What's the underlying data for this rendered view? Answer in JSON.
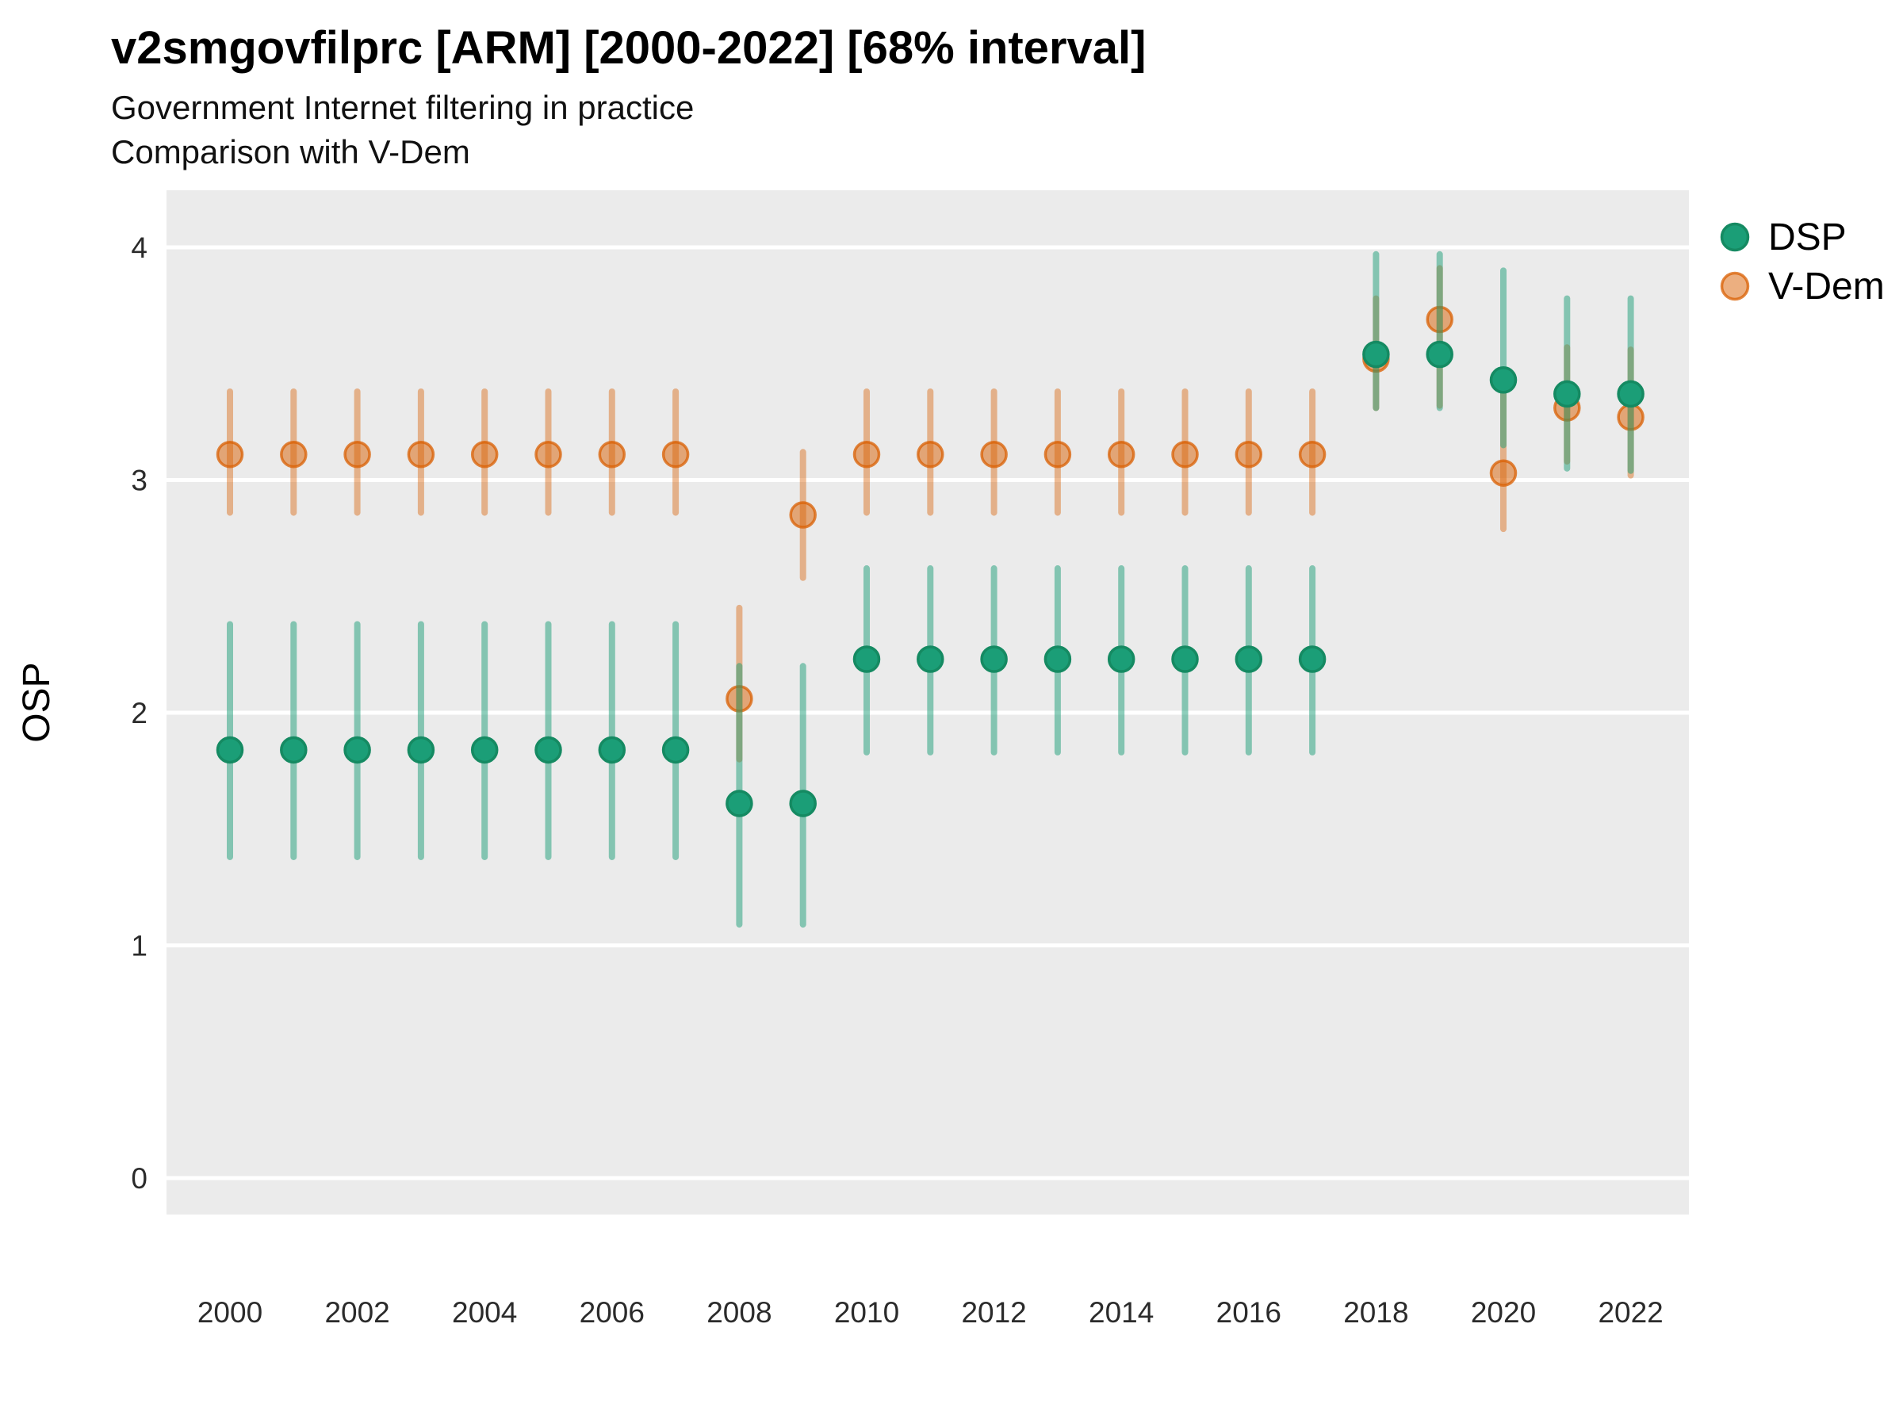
{
  "header": {
    "title": "v2smgovfilprc [ARM] [2000-2022] [68% interval]",
    "subtitle1": "Government Internet filtering in practice",
    "subtitle2": "Comparison with V-Dem"
  },
  "axes": {
    "y_label": "OSP",
    "y_ticks": [
      0,
      1,
      2,
      3,
      4
    ],
    "x_ticks": [
      2000,
      2002,
      2004,
      2006,
      2008,
      2010,
      2012,
      2014,
      2016,
      2018,
      2020,
      2022
    ]
  },
  "legend": {
    "items": [
      {
        "label": "DSP"
      },
      {
        "label": "V-Dem"
      }
    ]
  },
  "colors": {
    "panel_background": "#ebebeb",
    "gridline": "#ffffff",
    "dsp_green": "#1b9e77",
    "dsp_green_stroke": "#158a62",
    "vdem_orange": "#d95f02"
  },
  "chart_data": {
    "type": "pointrange",
    "title": "v2smgovfilprc [ARM] [2000-2022] [68% interval]",
    "subtitle": [
      "Government Internet filtering in practice",
      "Comparison with V-Dem"
    ],
    "interval": "68%",
    "xlabel": "",
    "ylabel": "OSP",
    "ylim": [
      0,
      4
    ],
    "grid": "major horizontal white lines on gray panel",
    "legend_position": "right-top",
    "x": [
      2000,
      2001,
      2002,
      2003,
      2004,
      2005,
      2006,
      2007,
      2008,
      2009,
      2010,
      2011,
      2012,
      2013,
      2014,
      2015,
      2016,
      2017,
      2018,
      2019,
      2020,
      2021,
      2022
    ],
    "series": [
      {
        "name": "DSP",
        "color": "#1b9e77",
        "est": [
          1.84,
          1.84,
          1.84,
          1.84,
          1.84,
          1.84,
          1.84,
          1.84,
          1.61,
          1.61,
          2.23,
          2.23,
          2.23,
          2.23,
          2.23,
          2.23,
          2.23,
          2.23,
          3.54,
          3.54,
          3.43,
          3.37,
          3.37
        ],
        "lo": [
          1.38,
          1.38,
          1.38,
          1.38,
          1.38,
          1.38,
          1.38,
          1.38,
          1.09,
          1.09,
          1.83,
          1.83,
          1.83,
          1.83,
          1.83,
          1.83,
          1.83,
          1.83,
          3.31,
          3.31,
          3.15,
          3.05,
          3.04
        ],
        "hi": [
          2.38,
          2.38,
          2.38,
          2.38,
          2.38,
          2.38,
          2.38,
          2.38,
          2.2,
          2.2,
          2.62,
          2.62,
          2.62,
          2.62,
          2.62,
          2.62,
          2.62,
          2.62,
          3.97,
          3.97,
          3.9,
          3.78,
          3.78
        ]
      },
      {
        "name": "V-Dem",
        "color": "#d95f02",
        "est": [
          3.11,
          3.11,
          3.11,
          3.11,
          3.11,
          3.11,
          3.11,
          3.11,
          2.06,
          2.85,
          3.11,
          3.11,
          3.11,
          3.11,
          3.11,
          3.11,
          3.11,
          3.11,
          3.52,
          3.69,
          3.03,
          3.31,
          3.27
        ],
        "lo": [
          2.86,
          2.86,
          2.86,
          2.86,
          2.86,
          2.86,
          2.86,
          2.86,
          1.8,
          2.58,
          2.86,
          2.86,
          2.86,
          2.86,
          2.86,
          2.86,
          2.86,
          2.86,
          3.31,
          3.32,
          2.79,
          3.08,
          3.02
        ],
        "hi": [
          3.38,
          3.38,
          3.38,
          3.38,
          3.38,
          3.38,
          3.38,
          3.38,
          2.45,
          3.12,
          3.38,
          3.38,
          3.38,
          3.38,
          3.38,
          3.38,
          3.38,
          3.38,
          3.78,
          3.91,
          3.38,
          3.57,
          3.56
        ]
      }
    ]
  }
}
